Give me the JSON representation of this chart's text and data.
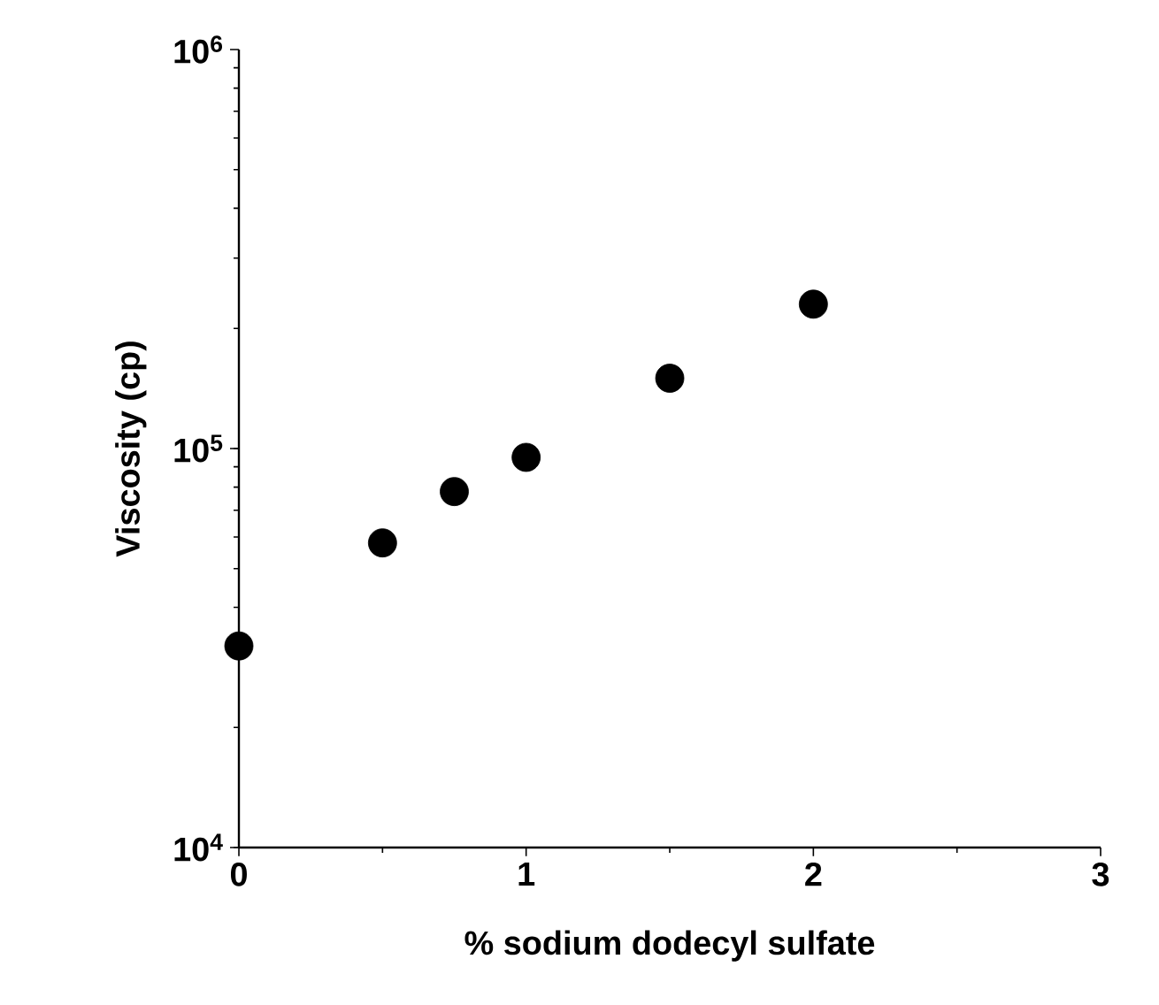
{
  "chart_data": {
    "type": "scatter",
    "xlabel": "% sodium dodecyl sulfate",
    "ylabel": "Viscosity (cp)",
    "x": [
      0,
      0.5,
      0.75,
      1,
      1.5,
      2
    ],
    "values": [
      32000,
      58000,
      78000,
      95000,
      150000,
      230000
    ],
    "color": "#000000",
    "marker": "circle",
    "log": "y",
    "xlim": [
      0,
      3
    ],
    "xticks": [
      0,
      1,
      2,
      3
    ],
    "ylim": [
      10000,
      1000000
    ],
    "yticks": [
      {
        "value": 10000,
        "label": "10$^{4}$"
      },
      {
        "value": 100000,
        "label": "10$^{5}$"
      },
      {
        "value": 1000000,
        "label": "10$^{6}$"
      }
    ],
    "grid": false
  }
}
